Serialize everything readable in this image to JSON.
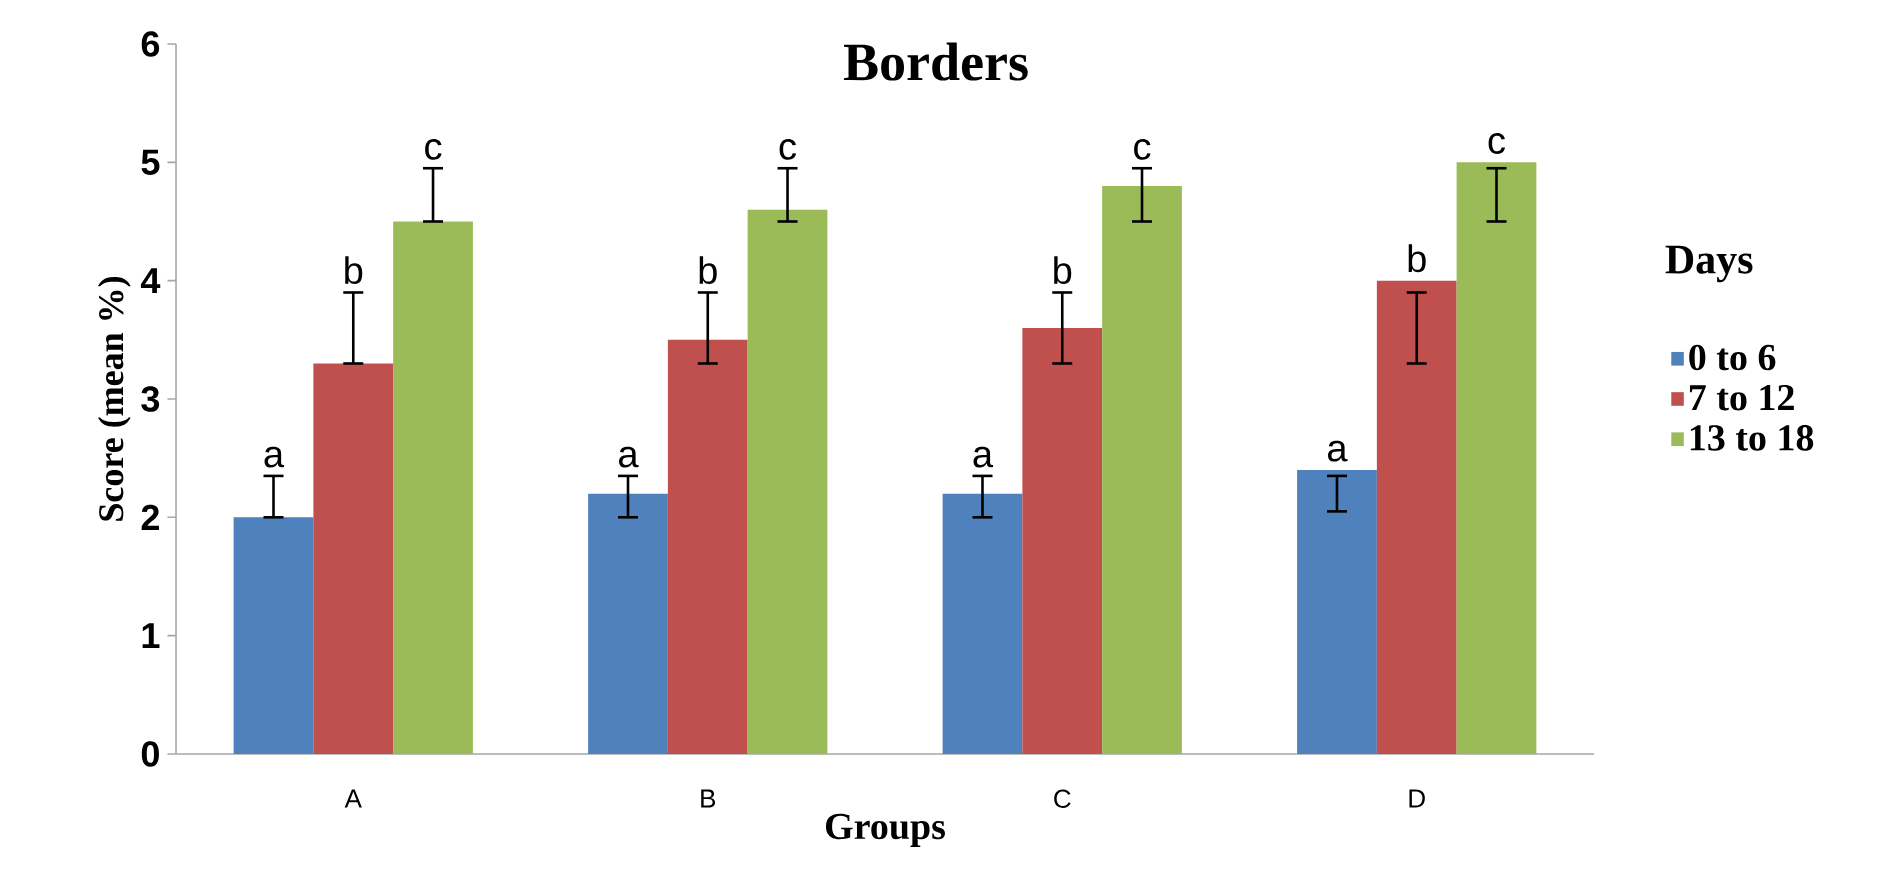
{
  "chart_data": {
    "type": "bar",
    "title": "Borders",
    "xlabel": "Groups",
    "ylabel": "Score (mean %)",
    "legend_title": "Days",
    "categories": [
      "A",
      "B",
      "C",
      "D"
    ],
    "series": [
      {
        "name": "0 to 6",
        "color": "#4f81bd",
        "values": [
          2.0,
          2.2,
          2.2,
          2.4
        ],
        "errors": [
          [
            2.0,
            2.35
          ],
          [
            2.0,
            2.35
          ],
          [
            2.0,
            2.35
          ],
          [
            2.05,
            2.35
          ]
        ],
        "value_labels": [
          "a",
          "a",
          "a",
          "a"
        ]
      },
      {
        "name": "7 to 12",
        "color": "#c0504d",
        "values": [
          3.3,
          3.5,
          3.6,
          4.0
        ],
        "errors": [
          [
            3.3,
            3.9
          ],
          [
            3.3,
            3.9
          ],
          [
            3.3,
            3.9
          ],
          [
            3.3,
            3.9
          ]
        ],
        "value_labels": [
          "b",
          "b",
          "b",
          "b"
        ]
      },
      {
        "name": "13 to 18",
        "color": "#9bbb59",
        "values": [
          4.5,
          4.6,
          4.8,
          5.0
        ],
        "errors": [
          [
            4.5,
            4.95
          ],
          [
            4.5,
            4.95
          ],
          [
            4.5,
            4.95
          ],
          [
            4.5,
            4.95
          ]
        ],
        "value_labels": [
          "c",
          "c",
          "c",
          "c"
        ]
      }
    ],
    "ylim": [
      0,
      6
    ],
    "yticks": [
      0,
      1,
      2,
      3,
      4,
      5,
      6
    ],
    "legend": "right",
    "grid": false
  }
}
